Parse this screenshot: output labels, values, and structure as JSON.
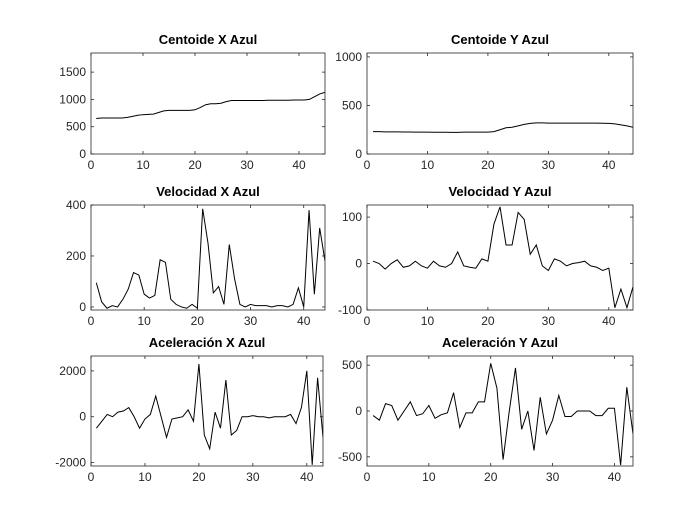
{
  "chart_data": [
    {
      "type": "line",
      "title": "Centoide X Azul",
      "x": [
        1,
        2,
        3,
        4,
        5,
        6,
        7,
        8,
        9,
        10,
        11,
        12,
        13,
        14,
        15,
        16,
        17,
        18,
        19,
        20,
        21,
        22,
        23,
        24,
        25,
        26,
        27,
        28,
        29,
        30,
        31,
        32,
        33,
        34,
        35,
        36,
        37,
        38,
        39,
        40,
        41,
        42,
        43,
        44,
        45
      ],
      "values": [
        650,
        660,
        660,
        660,
        660,
        660,
        670,
        690,
        710,
        720,
        725,
        730,
        760,
        790,
        800,
        800,
        800,
        800,
        800,
        810,
        850,
        900,
        920,
        920,
        930,
        960,
        980,
        980,
        980,
        980,
        980,
        980,
        980,
        985,
        985,
        985,
        985,
        985,
        990,
        990,
        990,
        1000,
        1050,
        1100,
        1130
      ],
      "color": "#000000",
      "xlim": [
        0,
        45
      ],
      "ylim": [
        0,
        1850
      ],
      "xticks": [
        0,
        10,
        20,
        30,
        40
      ],
      "yticks": [
        0,
        500,
        1000,
        1500
      ],
      "grid": false
    },
    {
      "type": "line",
      "title": "Centoide Y Azul",
      "x": [
        1,
        2,
        3,
        4,
        5,
        6,
        7,
        8,
        9,
        10,
        11,
        12,
        13,
        14,
        15,
        16,
        17,
        18,
        19,
        20,
        21,
        22,
        23,
        24,
        25,
        26,
        27,
        28,
        29,
        30,
        31,
        32,
        33,
        34,
        35,
        36,
        37,
        38,
        39,
        40,
        41,
        42,
        43,
        44,
        45
      ],
      "values": [
        230,
        230,
        228,
        228,
        228,
        226,
        226,
        225,
        225,
        225,
        224,
        224,
        224,
        223,
        223,
        225,
        225,
        225,
        225,
        225,
        230,
        250,
        270,
        275,
        290,
        305,
        315,
        320,
        320,
        318,
        318,
        318,
        318,
        318,
        318,
        318,
        318,
        318,
        316,
        315,
        310,
        300,
        290,
        275,
        265
      ],
      "color": "#000000",
      "xlim": [
        0,
        44
      ],
      "ylim": [
        0,
        1040
      ],
      "xticks": [
        0,
        10,
        20,
        30,
        40
      ],
      "yticks": [
        0,
        500,
        1000
      ],
      "grid": false
    },
    {
      "type": "line",
      "title": "Velocidad X Azul",
      "x": [
        1,
        2,
        3,
        4,
        5,
        6,
        7,
        8,
        9,
        10,
        11,
        12,
        13,
        14,
        15,
        16,
        17,
        18,
        19,
        20,
        21,
        22,
        23,
        24,
        25,
        26,
        27,
        28,
        29,
        30,
        31,
        32,
        33,
        34,
        35,
        36,
        37,
        38,
        39,
        40,
        41,
        42,
        43,
        44
      ],
      "values": [
        95,
        20,
        -5,
        5,
        0,
        30,
        70,
        135,
        125,
        50,
        35,
        45,
        185,
        175,
        30,
        10,
        0,
        -5,
        10,
        -5,
        385,
        250,
        55,
        80,
        10,
        245,
        110,
        10,
        0,
        10,
        5,
        5,
        5,
        0,
        5,
        5,
        0,
        10,
        75,
        0,
        380,
        50,
        310,
        180
      ],
      "color": "#000000",
      "xlim": [
        0,
        44
      ],
      "ylim": [
        -12,
        400
      ],
      "xticks": [
        0,
        10,
        20,
        30,
        40
      ],
      "yticks": [
        0,
        200,
        400
      ],
      "grid": false
    },
    {
      "type": "line",
      "title": "Velocidad Y Azul",
      "x": [
        1,
        2,
        3,
        4,
        5,
        6,
        7,
        8,
        9,
        10,
        11,
        12,
        13,
        14,
        15,
        16,
        17,
        18,
        19,
        20,
        21,
        22,
        23,
        24,
        25,
        26,
        27,
        28,
        29,
        30,
        31,
        32,
        33,
        34,
        35,
        36,
        37,
        38,
        39,
        40,
        41,
        42,
        43,
        44
      ],
      "values": [
        5,
        0,
        -12,
        0,
        8,
        -8,
        -5,
        5,
        -5,
        -10,
        5,
        -5,
        -8,
        0,
        25,
        -5,
        -8,
        -10,
        10,
        5,
        85,
        122,
        40,
        40,
        110,
        95,
        20,
        40,
        -5,
        -15,
        10,
        5,
        -5,
        0,
        2,
        5,
        -5,
        -8,
        -15,
        -10,
        -95,
        -55,
        -95,
        -50
      ],
      "color": "#000000",
      "xlim": [
        0,
        44
      ],
      "ylim": [
        -100,
        126
      ],
      "xticks": [
        0,
        10,
        20,
        30,
        40
      ],
      "yticks": [
        -100,
        0,
        100
      ],
      "grid": false
    },
    {
      "type": "line",
      "title": "Aceleración X Azul",
      "x": [
        1,
        2,
        3,
        4,
        5,
        6,
        7,
        8,
        9,
        10,
        11,
        12,
        13,
        14,
        15,
        16,
        17,
        18,
        19,
        20,
        21,
        22,
        23,
        24,
        25,
        26,
        27,
        28,
        29,
        30,
        31,
        32,
        33,
        34,
        35,
        36,
        37,
        38,
        39,
        40,
        41,
        42,
        43
      ],
      "values": [
        -500,
        -200,
        100,
        0,
        200,
        250,
        400,
        0,
        -500,
        -100,
        100,
        900,
        0,
        -900,
        -100,
        -50,
        0,
        300,
        -200,
        2300,
        -800,
        -1400,
        200,
        -500,
        1600,
        -800,
        -600,
        0,
        0,
        50,
        0,
        0,
        -50,
        0,
        0,
        0,
        100,
        -300,
        400,
        2000,
        -2100,
        1700,
        -900
      ],
      "color": "#000000",
      "xlim": [
        0,
        43
      ],
      "ylim": [
        -2150,
        2650
      ],
      "xticks": [
        0,
        10,
        20,
        30,
        40
      ],
      "yticks": [
        -2000,
        0,
        2000
      ],
      "grid": false
    },
    {
      "type": "line",
      "title": "Aceleración Y Azul",
      "x": [
        1,
        2,
        3,
        4,
        5,
        6,
        7,
        8,
        9,
        10,
        11,
        12,
        13,
        14,
        15,
        16,
        17,
        18,
        19,
        20,
        21,
        22,
        23,
        24,
        25,
        26,
        27,
        28,
        29,
        30,
        31,
        32,
        33,
        34,
        35,
        36,
        37,
        38,
        39,
        40,
        41,
        42,
        43
      ],
      "values": [
        -50,
        -100,
        80,
        60,
        -100,
        0,
        100,
        -50,
        -30,
        60,
        -80,
        -40,
        -20,
        200,
        -180,
        -20,
        -20,
        100,
        100,
        520,
        250,
        -530,
        0,
        470,
        -200,
        0,
        -430,
        150,
        -250,
        -100,
        170,
        -60,
        -60,
        0,
        0,
        0,
        -50,
        -50,
        30,
        30,
        -590,
        260,
        -250
      ],
      "color": "#000000",
      "xlim": [
        0,
        43
      ],
      "ylim": [
        -600,
        600
      ],
      "xticks": [
        0,
        10,
        20,
        30,
        40
      ],
      "yticks": [
        -500,
        0,
        500
      ],
      "grid": false
    }
  ]
}
